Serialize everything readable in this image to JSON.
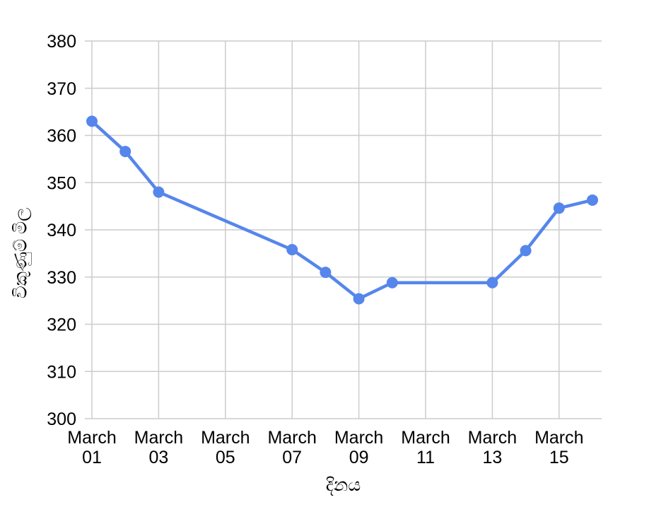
{
  "page": {
    "background_color": "#ffffff"
  },
  "chart_data": {
    "type": "line",
    "title": "",
    "xlabel": "දිනය",
    "ylabel": "විකුණුම් මිල",
    "ylim": [
      300,
      380
    ],
    "y_ticks": [
      300,
      310,
      320,
      330,
      340,
      350,
      360,
      370,
      380
    ],
    "grid": true,
    "legend_position": "none",
    "x_axis_kind": "date-continuous",
    "x_visible_day_range": [
      1,
      16
    ],
    "x_ticks": [
      {
        "day": 1,
        "line1": "March",
        "line2": "01"
      },
      {
        "day": 3,
        "line1": "March",
        "line2": "03"
      },
      {
        "day": 5,
        "line1": "March",
        "line2": "05"
      },
      {
        "day": 7,
        "line1": "March",
        "line2": "07"
      },
      {
        "day": 9,
        "line1": "March",
        "line2": "09"
      },
      {
        "day": 11,
        "line1": "March",
        "line2": "11"
      },
      {
        "day": 13,
        "line1": "March",
        "line2": "13"
      },
      {
        "day": 15,
        "line1": "March",
        "line2": "15"
      }
    ],
    "series": [
      {
        "name": "price-series",
        "color": "#5686EC",
        "marker": "circle",
        "points": [
          {
            "label": "March 01",
            "day": 1,
            "value": 363.0
          },
          {
            "label": "March 02",
            "day": 2,
            "value": 356.6
          },
          {
            "label": "March 03",
            "day": 3,
            "value": 348.0
          },
          {
            "label": "March 07",
            "day": 7,
            "value": 335.8
          },
          {
            "label": "March 08",
            "day": 8,
            "value": 331.0
          },
          {
            "label": "March 09",
            "day": 9,
            "value": 325.4
          },
          {
            "label": "March 10",
            "day": 10,
            "value": 328.8
          },
          {
            "label": "March 13",
            "day": 13,
            "value": 328.8
          },
          {
            "label": "March 14",
            "day": 14,
            "value": 335.6
          },
          {
            "label": "March 15",
            "day": 15,
            "value": 344.6
          },
          {
            "label": "March 16",
            "day": 16,
            "value": 346.3
          }
        ]
      }
    ],
    "colors": {
      "gridline": "#cccccc",
      "tick_text": "#000000",
      "axis_title_text": "#000000",
      "background": "#ffffff"
    }
  }
}
